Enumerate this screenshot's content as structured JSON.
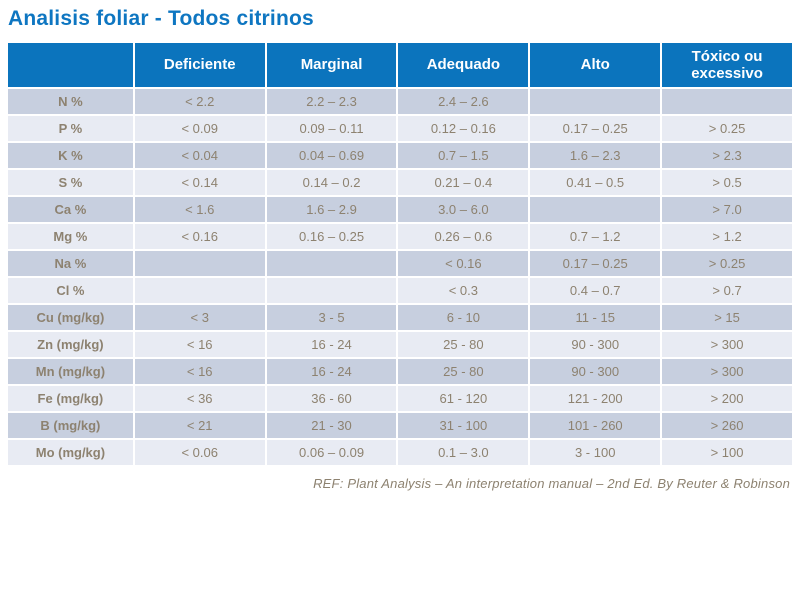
{
  "title": "Analisis foliar - Todos citrinos",
  "table": {
    "columns": [
      "Deficiente",
      "Marginal",
      "Adequado",
      "Alto",
      "Tóxico ou excessivo"
    ],
    "rows": [
      {
        "label": "N %",
        "values": [
          "< 2.2",
          "2.2 – 2.3",
          "2.4 – 2.6",
          "",
          ""
        ]
      },
      {
        "label": "P %",
        "values": [
          "< 0.09",
          "0.09 – 0.11",
          "0.12 – 0.16",
          "0.17 – 0.25",
          "> 0.25"
        ]
      },
      {
        "label": "K %",
        "values": [
          "< 0.04",
          "0.04 – 0.69",
          "0.7 – 1.5",
          "1.6 – 2.3",
          "> 2.3"
        ]
      },
      {
        "label": "S %",
        "values": [
          "< 0.14",
          "0.14 – 0.2",
          "0.21 – 0.4",
          "0.41 – 0.5",
          "> 0.5"
        ]
      },
      {
        "label": "Ca %",
        "values": [
          "< 1.6",
          "1.6 – 2.9",
          "3.0 – 6.0",
          "",
          "> 7.0"
        ]
      },
      {
        "label": "Mg %",
        "values": [
          "< 0.16",
          "0.16 – 0.25",
          "0.26 – 0.6",
          "0.7 – 1.2",
          "> 1.2"
        ]
      },
      {
        "label": "Na %",
        "values": [
          "",
          "",
          "< 0.16",
          "0.17 – 0.25",
          "> 0.25"
        ]
      },
      {
        "label": "Cl %",
        "values": [
          "",
          "",
          "< 0.3",
          "0.4 – 0.7",
          "> 0.7"
        ]
      },
      {
        "label": "Cu (mg/kg)",
        "values": [
          "< 3",
          "3 - 5",
          "6 - 10",
          "11 - 15",
          "> 15"
        ]
      },
      {
        "label": "Zn (mg/kg)",
        "values": [
          "< 16",
          "16 - 24",
          "25 - 80",
          "90 - 300",
          "> 300"
        ]
      },
      {
        "label": "Mn (mg/kg)",
        "values": [
          "< 16",
          "16 - 24",
          "25 - 80",
          "90 - 300",
          "> 300"
        ]
      },
      {
        "label": "Fe (mg/kg)",
        "values": [
          "< 36",
          "36 - 60",
          "61 - 120",
          "121 - 200",
          "> 200"
        ]
      },
      {
        "label": "B (mg/kg)",
        "values": [
          "< 21",
          "21 - 30",
          "31 - 100",
          "101 - 260",
          "> 260"
        ]
      },
      {
        "label": "Mo (mg/kg)",
        "values": [
          "< 0.06",
          "0.06 – 0.09",
          "0.1 – 3.0",
          "3 - 100",
          "> 100"
        ]
      }
    ]
  },
  "footer": {
    "reference": "REF: Plant Analysis – An interpretation manual – 2nd Ed. By Reuter & Robinson"
  },
  "colors": {
    "header_bg": "#0b74bd",
    "title": "#0e76c1",
    "row_odd": "#c7cfdf",
    "row_even": "#e8ebf3",
    "text": "#8d8270"
  }
}
